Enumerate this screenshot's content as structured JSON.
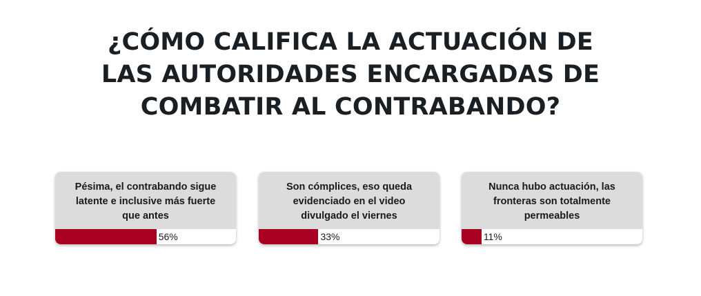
{
  "poll": {
    "title_lines": [
      "¿CÓMO CALIFICA LA ACTUACIÓN DE",
      "LAS AUTORIDADES ENCARGADAS DE",
      "COMBATIR AL CONTRABANDO?"
    ],
    "accent_color": "#a70021",
    "card_background": "#dcdcdc",
    "options": [
      {
        "text_lines": [
          "Pésima, el contrabando sigue",
          "latente e inclusive más fuerte",
          "que antes"
        ],
        "percent": 56,
        "percent_label": "56%"
      },
      {
        "text_lines": [
          "Son cómplices, eso queda",
          "evidenciado en el video",
          "divulgado el viernes"
        ],
        "percent": 33,
        "percent_label": "33%"
      },
      {
        "text_lines": [
          "Nunca hubo actuación, las",
          "fronteras son totalmente",
          "permeables"
        ],
        "percent": 11,
        "percent_label": "11%"
      }
    ]
  }
}
